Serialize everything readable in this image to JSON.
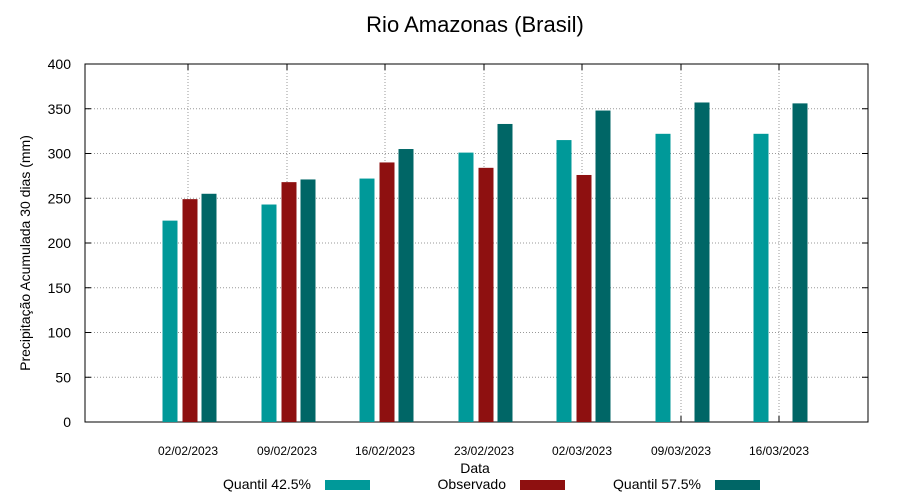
{
  "chart_data": {
    "type": "bar",
    "title": "Rio Amazonas (Brasil)",
    "xlabel": "Data",
    "ylabel": "Precipitação Acumulada 30 dias (mm)",
    "ylim": [
      0,
      400
    ],
    "yticks": [
      0,
      50,
      100,
      150,
      200,
      250,
      300,
      350,
      400
    ],
    "grid": true,
    "legend_position": "bottom",
    "categories": [
      "02/02/2023",
      "09/02/2023",
      "16/02/2023",
      "23/02/2023",
      "02/03/2023",
      "09/03/2023",
      "16/03/2023"
    ],
    "series": [
      {
        "name": "Quantil 42.5%",
        "color": "#009999",
        "values": [
          225,
          243,
          272,
          301,
          315,
          322,
          322
        ]
      },
      {
        "name": "Observado",
        "color": "#8e1010",
        "values": [
          249,
          268,
          290,
          284,
          276,
          null,
          null
        ]
      },
      {
        "name": "Quantil 57.5%",
        "color": "#006666",
        "values": [
          255,
          271,
          305,
          333,
          348,
          357,
          356
        ]
      }
    ]
  }
}
